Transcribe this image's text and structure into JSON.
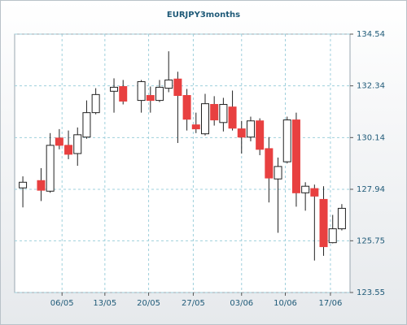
{
  "chart_data": {
    "type": "candlestick",
    "title": "EURJPY3months",
    "x": [
      0,
      2,
      3,
      4,
      5,
      6,
      7,
      8,
      10,
      11,
      13,
      14,
      15,
      16,
      17,
      18,
      19,
      20,
      21,
      22,
      23,
      24,
      25,
      26,
      27,
      28,
      29,
      30,
      31,
      32,
      33,
      34,
      35
    ],
    "open": [
      128.0,
      128.31,
      127.86,
      130.12,
      129.81,
      129.46,
      130.16,
      131.2,
      132.11,
      132.31,
      131.72,
      131.93,
      131.72,
      132.24,
      132.63,
      131.93,
      130.68,
      130.3,
      131.55,
      130.78,
      131.44,
      130.51,
      130.16,
      130.85,
      129.67,
      128.38,
      129.11,
      130.89,
      127.79,
      127.97,
      127.51,
      125.67,
      126.26
    ],
    "high": [
      128.49,
      128.84,
      130.33,
      130.5,
      130.44,
      130.57,
      131.72,
      132.24,
      132.66,
      132.59,
      132.59,
      132.31,
      132.59,
      133.81,
      132.94,
      132.21,
      131.2,
      132.0,
      131.9,
      131.83,
      132.14,
      130.85,
      131.03,
      130.96,
      130.16,
      129.29,
      131.03,
      131.2,
      128.24,
      128.14,
      128.07,
      126.85,
      127.31
    ],
    "low": [
      127.17,
      127.44,
      127.79,
      129.64,
      129.22,
      128.94,
      130.09,
      131.13,
      131.2,
      131.55,
      131.2,
      131.2,
      131.65,
      132.07,
      129.91,
      130.44,
      130.33,
      130.23,
      130.65,
      130.4,
      130.44,
      129.46,
      129.98,
      129.39,
      127.38,
      126.09,
      129.04,
      127.2,
      127.03,
      124.91,
      125.11,
      125.64,
      126.19
    ],
    "close": [
      128.24,
      127.9,
      129.81,
      129.81,
      129.43,
      130.26,
      131.2,
      131.97,
      132.28,
      131.69,
      132.52,
      131.72,
      132.28,
      132.59,
      131.93,
      130.92,
      130.51,
      131.58,
      130.89,
      131.55,
      130.54,
      130.16,
      130.85,
      129.64,
      128.42,
      128.91,
      130.89,
      127.79,
      128.07,
      127.65,
      125.5,
      126.26,
      127.13
    ],
    "up_color": "#ffffff",
    "down_color": "#e84040",
    "xlim": [
      -0.9,
      35.9
    ],
    "xticks": [
      {
        "value": 4.3,
        "label": "06/05"
      },
      {
        "value": 9.0,
        "label": "13/05"
      },
      {
        "value": 13.8,
        "label": "20/05"
      },
      {
        "value": 18.7,
        "label": "27/05"
      },
      {
        "value": 24.0,
        "label": "03/06"
      },
      {
        "value": 28.8,
        "label": "10/06"
      },
      {
        "value": 33.75,
        "label": "17/06"
      }
    ],
    "ylim": [
      123.55,
      134.54
    ],
    "yticks": [
      123.55,
      125.75,
      127.94,
      130.14,
      132.34,
      134.54
    ],
    "grid": true
  }
}
